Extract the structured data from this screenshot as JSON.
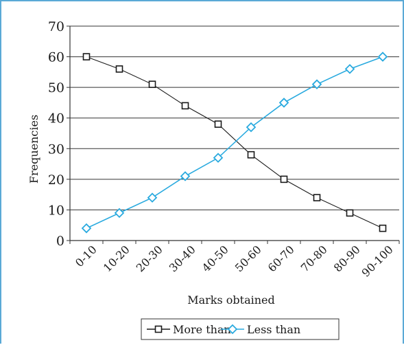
{
  "chart_data": {
    "type": "line",
    "xlabel": "Marks obtained",
    "ylabel": "Frequencies",
    "ylim": [
      0,
      70
    ],
    "yticks": [
      "0",
      "10",
      "20",
      "30",
      "40",
      "50",
      "60",
      "70"
    ],
    "grid": true,
    "legend_position": "bottom",
    "categories": [
      "0-10",
      "10-20",
      "20-30",
      "30-40",
      "40-50",
      "50-60",
      "60-70",
      "70-80",
      "80-90",
      "90-100"
    ],
    "series": [
      {
        "name": "More than",
        "marker": "square",
        "color": "#1a1a1a",
        "values": [
          60,
          56,
          51,
          44,
          38,
          28,
          20,
          14,
          9,
          4
        ]
      },
      {
        "name": "Less than",
        "marker": "diamond",
        "color": "#29aadf",
        "values": [
          4,
          9,
          14,
          21,
          27,
          37,
          45,
          51,
          56,
          60
        ]
      }
    ]
  }
}
